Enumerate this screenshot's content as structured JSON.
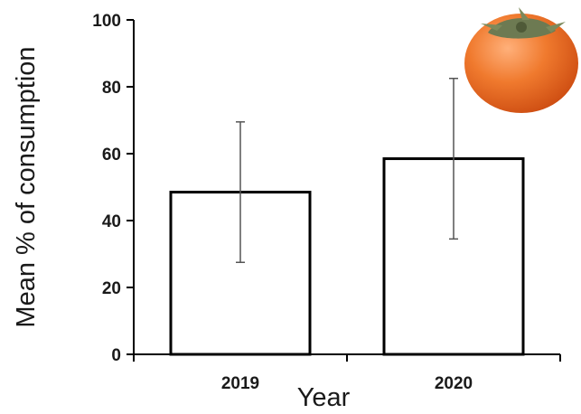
{
  "chart_data": {
    "type": "bar",
    "categories": [
      "2019",
      "2020"
    ],
    "values": [
      48.5,
      58.5
    ],
    "error_low": [
      27.5,
      34.5
    ],
    "error_high": [
      69.5,
      82.5
    ],
    "xlabel": "Year",
    "ylabel": "Mean % of consumption",
    "ylim": [
      0,
      100
    ],
    "yticks": [
      0,
      20,
      40,
      60,
      80,
      100
    ],
    "grid": false,
    "bar_fill": "#ffffff",
    "bar_stroke": "#000000",
    "error_bar_color": "#555555",
    "decoration_icon": "persimmon-icon",
    "decoration_colors": {
      "fruit": "#e8661f",
      "calyx": "#6d7a52"
    }
  }
}
